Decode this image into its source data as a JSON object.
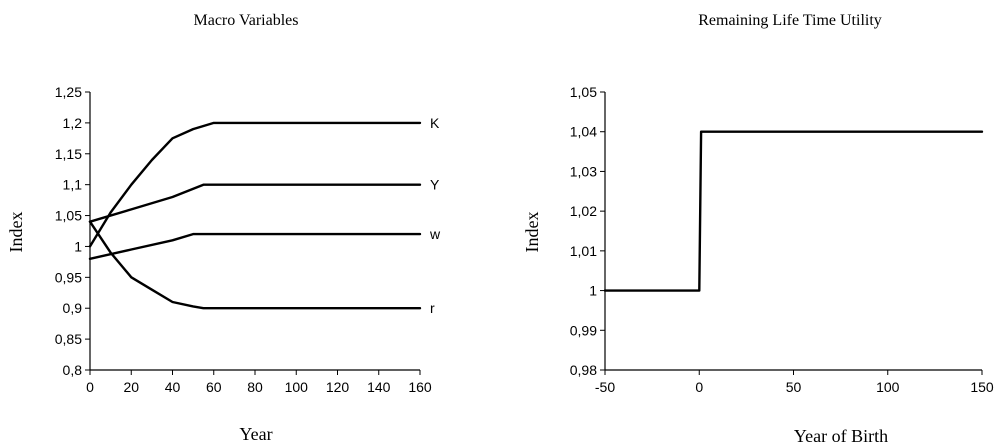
{
  "chart_data": [
    {
      "type": "line",
      "title": "Macro Variables",
      "xlabel": "Year",
      "ylabel": "Index",
      "xlim": [
        0,
        160
      ],
      "ylim": [
        0.8,
        1.25
      ],
      "x_ticks": [
        "0",
        "20",
        "40",
        "60",
        "80",
        "100",
        "120",
        "140",
        "160"
      ],
      "y_ticks": [
        "0,8",
        "0,85",
        "0,9",
        "0,95",
        "1",
        "1,05",
        "1,1",
        "1,15",
        "1,2",
        "1,25"
      ],
      "grid": false,
      "series": [
        {
          "name": "K",
          "x": [
            0,
            10,
            20,
            30,
            40,
            50,
            60,
            160
          ],
          "y": [
            1.0,
            1.055,
            1.1,
            1.14,
            1.175,
            1.19,
            1.2,
            1.2
          ]
        },
        {
          "name": "Y",
          "x": [
            0,
            20,
            40,
            55,
            160
          ],
          "y": [
            1.04,
            1.06,
            1.08,
            1.1,
            1.1
          ]
        },
        {
          "name": "w",
          "x": [
            0,
            20,
            40,
            50,
            160
          ],
          "y": [
            0.98,
            0.995,
            1.01,
            1.02,
            1.02
          ]
        },
        {
          "name": "r",
          "x": [
            0,
            10,
            20,
            30,
            40,
            50,
            55,
            160
          ],
          "y": [
            1.04,
            0.99,
            0.95,
            0.93,
            0.91,
            0.903,
            0.9,
            0.9
          ]
        }
      ]
    },
    {
      "type": "line",
      "title": "Remaining Life Time Utility",
      "xlabel": "Year of Birth",
      "ylabel": "Index",
      "xlim": [
        -50,
        150
      ],
      "ylim": [
        0.98,
        1.05
      ],
      "x_ticks": [
        "-50",
        "0",
        "50",
        "100",
        "150"
      ],
      "y_ticks": [
        "0,98",
        "0,99",
        "1",
        "1,01",
        "1,02",
        "1,03",
        "1,04",
        "1,05"
      ],
      "grid": false,
      "series": [
        {
          "name": "",
          "x": [
            -50,
            0,
            1,
            150
          ],
          "y": [
            1.0,
            1.0,
            1.04,
            1.04
          ]
        }
      ]
    }
  ]
}
